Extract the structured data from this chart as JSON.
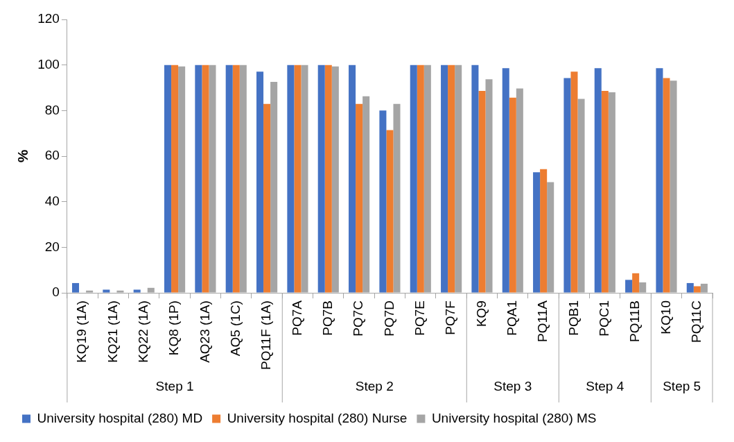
{
  "chart_data": {
    "type": "bar",
    "ylabel": "%",
    "categories": [
      "KQ19 (1A)",
      "KQ21 (1A)",
      "KQ22 (1A)",
      "KQ8 (1P)",
      "AQ23 (1A)",
      "AQ5 (1C)",
      "PQ11F (1A)",
      "PQ7A",
      "PQ7B",
      "PQ7C",
      "PQ7D",
      "PQ7E",
      "PQ7F",
      "KQ9",
      "PQA1",
      "PQ11A",
      "PQB1",
      "PQC1",
      "PQ11B",
      "KQ10",
      "PQ11C"
    ],
    "series": [
      {
        "name": "University hospital (280) MD",
        "color": "#4472c4",
        "values": [
          4.3,
          1.4,
          1.4,
          100,
          100,
          100,
          97.1,
          100,
          100,
          100,
          80,
          100,
          100,
          100,
          98.6,
          52.9,
          94.3,
          98.6,
          5.7,
          98.6,
          4.3
        ]
      },
      {
        "name": "University hospital (280) Nurse",
        "color": "#ed7d31",
        "values": [
          0,
          0,
          0,
          100,
          100,
          100,
          82.9,
          100,
          100,
          82.9,
          71.4,
          100,
          100,
          88.6,
          85.7,
          54.3,
          97.1,
          88.6,
          8.6,
          94.3,
          2.9
        ]
      },
      {
        "name": "University hospital (280) MS",
        "color": "#a5a5a5",
        "values": [
          1,
          1,
          2.2,
          99.4,
          100,
          100,
          92.6,
          100,
          99.4,
          86.3,
          82.9,
          100,
          100,
          93.7,
          89.7,
          48.6,
          85.1,
          88,
          4.6,
          93.1,
          4
        ]
      }
    ],
    "ylim": [
      0,
      120
    ],
    "yticks": [
      0,
      20,
      40,
      60,
      80,
      100,
      120
    ],
    "grid": false,
    "legend": "bottom",
    "annotations": [
      "Step 1",
      "Step 2",
      "Step 3",
      "Step 4",
      "Step 5"
    ]
  }
}
